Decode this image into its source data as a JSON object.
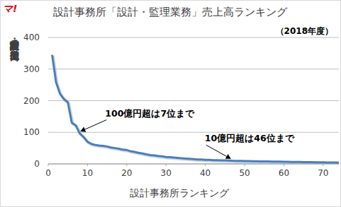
{
  "logo": "マ!",
  "chart_data": {
    "type": "line",
    "title": "設計事務所「設計・監理業務」売上高ランキング",
    "subtitle": "（2018年度）",
    "x_label": "設計事務所ランキング",
    "y_label": "設計・監理業務の売上高（億円）",
    "x": [
      1,
      2,
      3,
      4,
      5,
      6,
      7,
      8,
      9,
      10,
      11,
      12,
      13,
      14,
      15,
      16,
      17,
      18,
      19,
      20,
      21,
      22,
      23,
      24,
      25,
      26,
      27,
      28,
      29,
      30,
      31,
      32,
      33,
      34,
      35,
      36,
      37,
      38,
      39,
      40,
      41,
      42,
      43,
      44,
      45,
      46,
      47,
      48,
      49,
      50,
      51,
      52,
      53,
      54,
      55,
      56,
      57,
      58,
      59,
      60,
      61,
      62,
      63,
      64,
      65,
      66,
      67,
      68,
      69,
      70,
      71,
      72,
      73,
      74
    ],
    "values": [
      345,
      258,
      222,
      205,
      195,
      130,
      122,
      97,
      85,
      70,
      63,
      60,
      58,
      57,
      55,
      52,
      50,
      48,
      45,
      44,
      40,
      38,
      35,
      33,
      30,
      28,
      27,
      25,
      24,
      22,
      21,
      20,
      19,
      18,
      17,
      16,
      15,
      14,
      14,
      13,
      13,
      12,
      12,
      11,
      11,
      10.5,
      9.8,
      9.5,
      9.3,
      9,
      8.8,
      8.5,
      8.3,
      8,
      7.8,
      7.6,
      7.4,
      7.2,
      7,
      6.8,
      6.6,
      6.4,
      6.2,
      6,
      5.8,
      5.6,
      5.4,
      5.2,
      5,
      4.8,
      4.6,
      4.4,
      4.2,
      4
    ],
    "color": "#4a7ebb",
    "xlim": [
      0,
      74
    ],
    "xticks": [
      0,
      10,
      20,
      30,
      40,
      50,
      60,
      70
    ],
    "ylim": [
      0,
      400
    ],
    "yticks": [
      0,
      100,
      200,
      300,
      400
    ],
    "grid": true,
    "annotations": [
      {
        "text": "100億円超は7位まで",
        "x": 8,
        "y": 97
      },
      {
        "text": "10億円超は46位まで",
        "x": 46,
        "y": 10.5
      }
    ]
  }
}
